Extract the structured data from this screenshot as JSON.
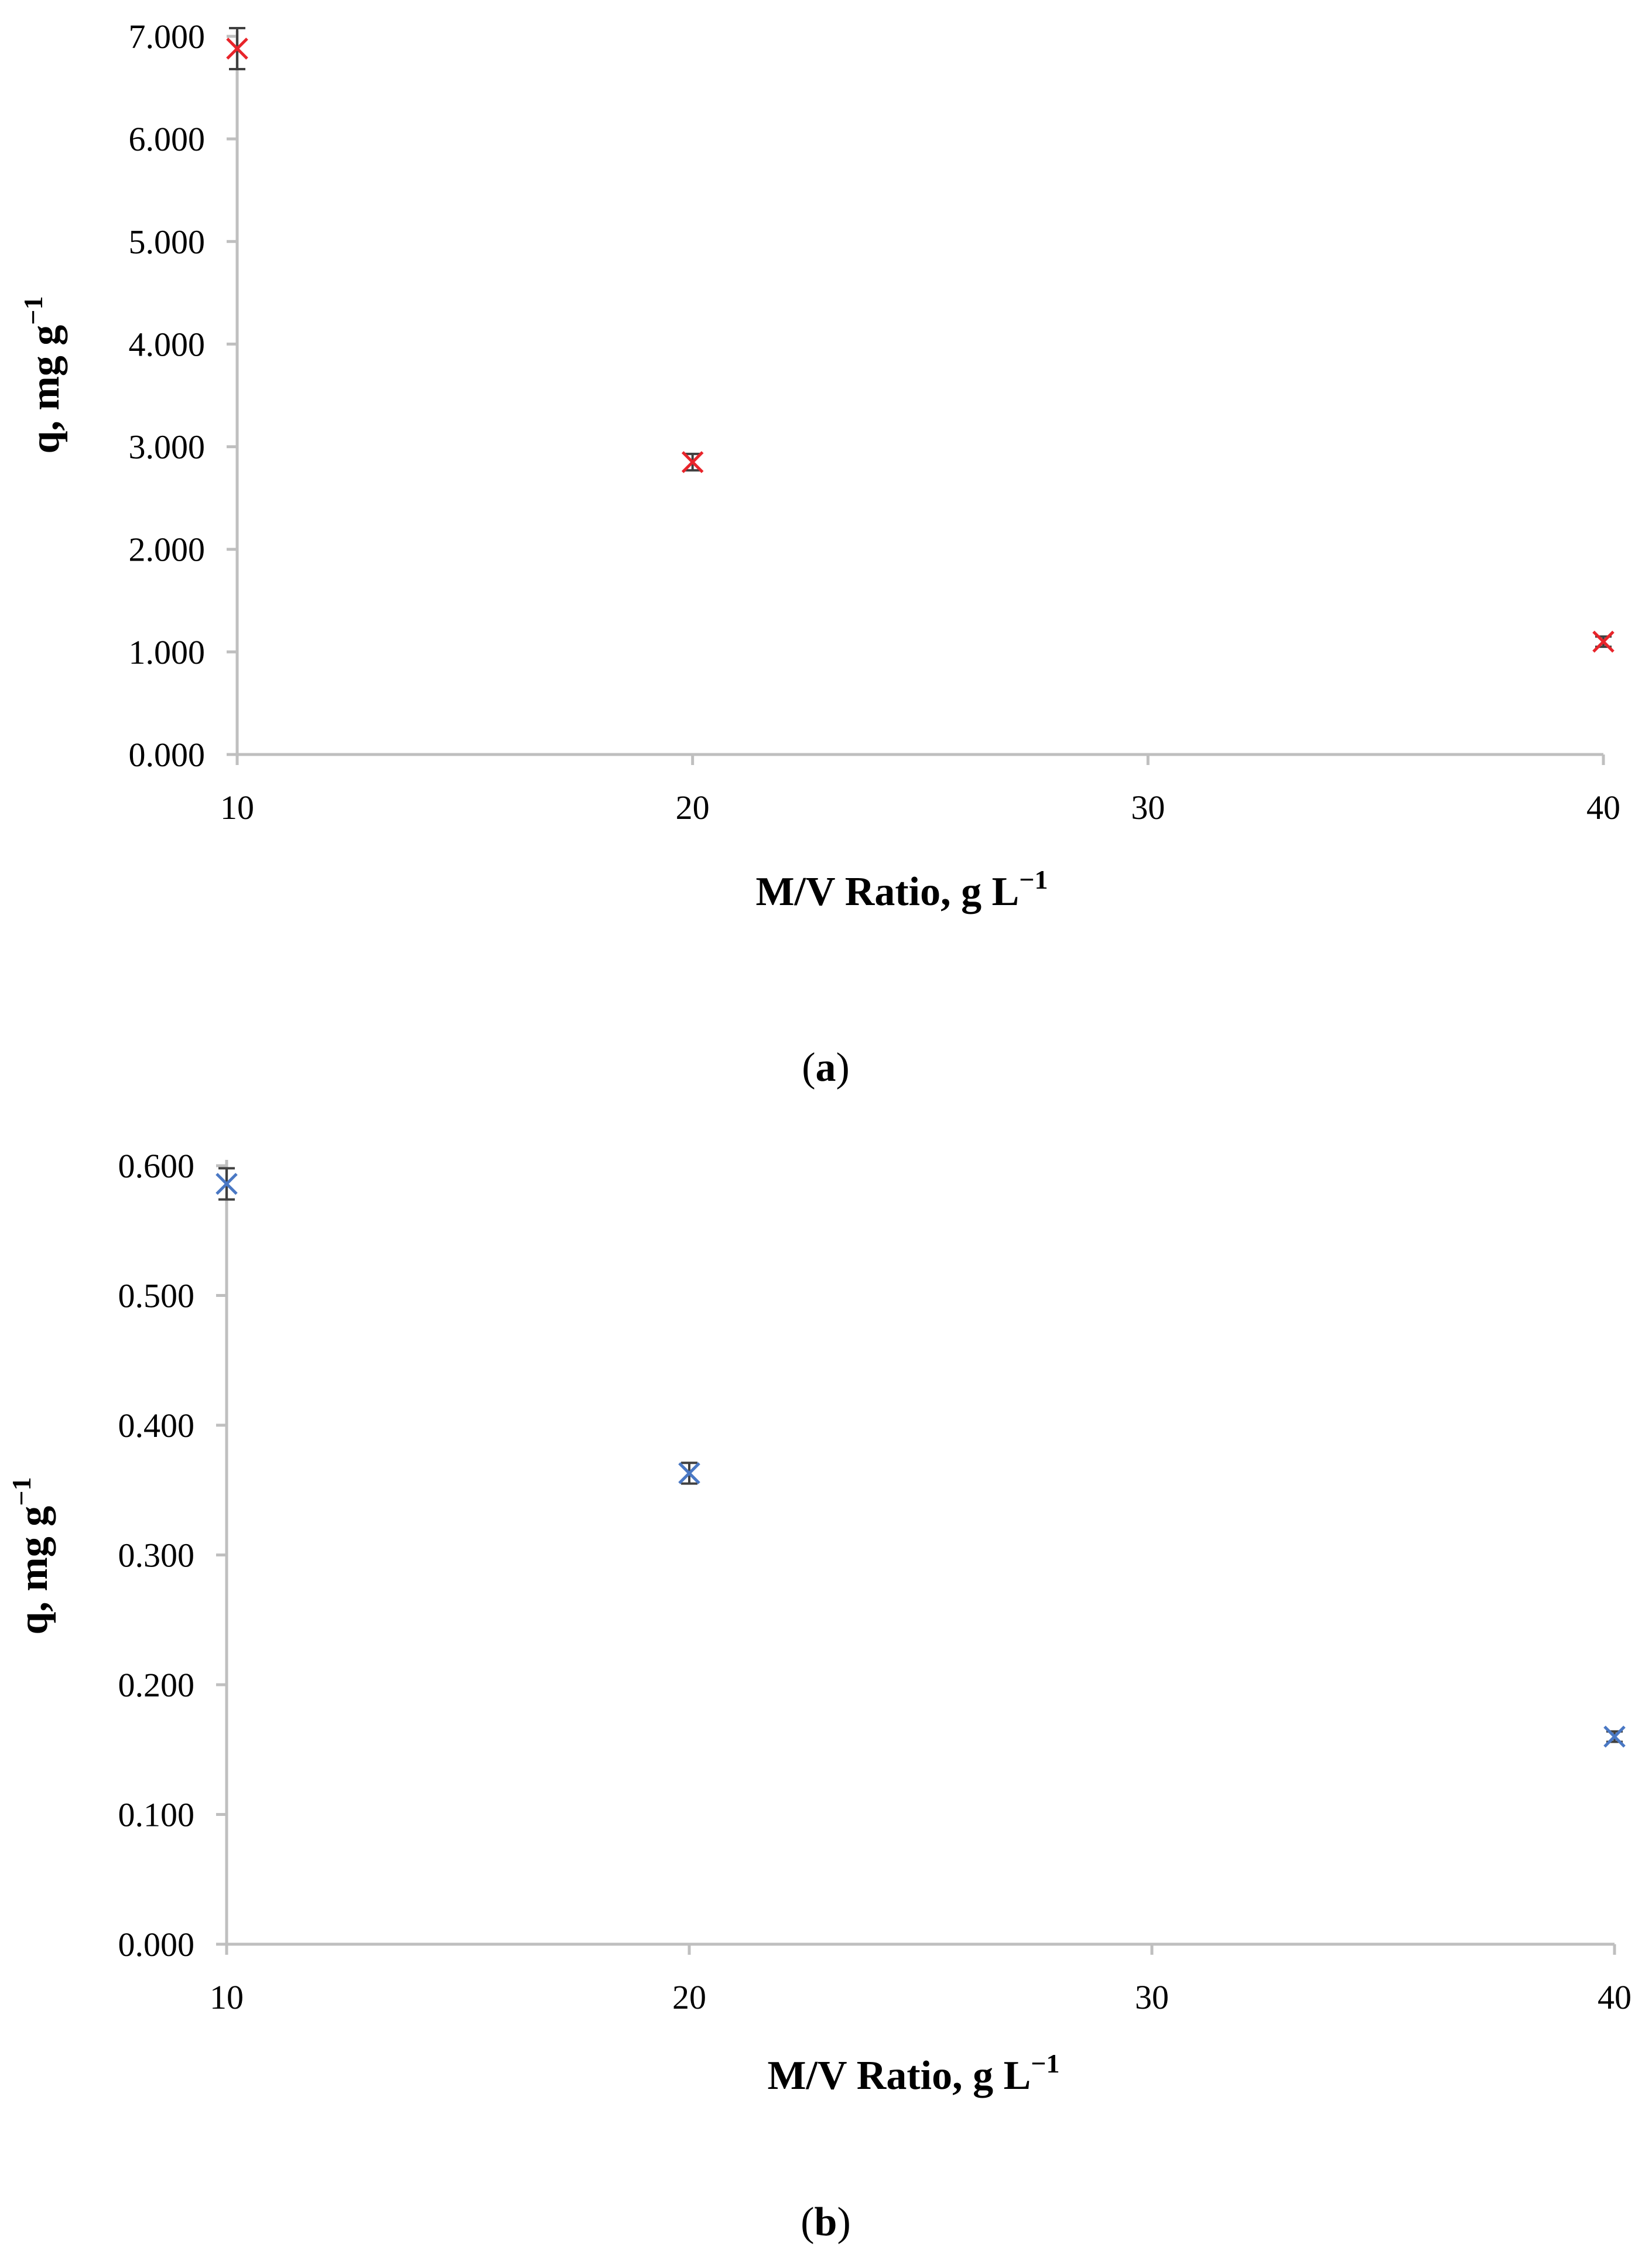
{
  "chart_data": [
    {
      "type": "scatter",
      "panel_label": "a",
      "xlabel": "M/V Ratio, g L",
      "xlabel_sup": "−1",
      "ylabel": "q, mg g",
      "ylabel_sup": "−1",
      "xlim": [
        10,
        40
      ],
      "ylim": [
        0,
        7
      ],
      "x_ticks": [
        10,
        20,
        30,
        40
      ],
      "x_tick_labels": [
        "10",
        "20",
        "30",
        "40"
      ],
      "y_ticks": [
        0,
        1,
        2,
        3,
        4,
        5,
        6,
        7
      ],
      "y_tick_labels": [
        "0.000",
        "1.000",
        "2.000",
        "3.000",
        "4.000",
        "5.000",
        "6.000",
        "7.000"
      ],
      "grid": false,
      "legend": "none",
      "marker_color": "#e8242a",
      "error_bar_color": "#404040",
      "points": [
        {
          "x": 10,
          "y": 6.88,
          "err": 0.2
        },
        {
          "x": 20,
          "y": 2.85,
          "err": 0.08
        },
        {
          "x": 40,
          "y": 1.1,
          "err": 0.05
        }
      ]
    },
    {
      "type": "scatter",
      "panel_label": "b",
      "xlabel": "M/V Ratio, g L",
      "xlabel_sup": "−1",
      "ylabel": "q, mg g",
      "ylabel_sup": "−1",
      "xlim": [
        10,
        40
      ],
      "ylim": [
        0,
        0.6
      ],
      "x_ticks": [
        10,
        20,
        30,
        40
      ],
      "x_tick_labels": [
        "10",
        "20",
        "30",
        "40"
      ],
      "y_ticks": [
        0,
        0.1,
        0.2,
        0.3,
        0.4,
        0.5,
        0.6
      ],
      "y_tick_labels": [
        "0.000",
        "0.100",
        "0.200",
        "0.300",
        "0.400",
        "0.500",
        "0.600"
      ],
      "grid": false,
      "legend": "none",
      "marker_color": "#4a78c4",
      "error_bar_color": "#404040",
      "points": [
        {
          "x": 10,
          "y": 0.586,
          "err": 0.012
        },
        {
          "x": 20,
          "y": 0.363,
          "err": 0.008
        },
        {
          "x": 40,
          "y": 0.16,
          "err": 0.004
        }
      ]
    }
  ]
}
